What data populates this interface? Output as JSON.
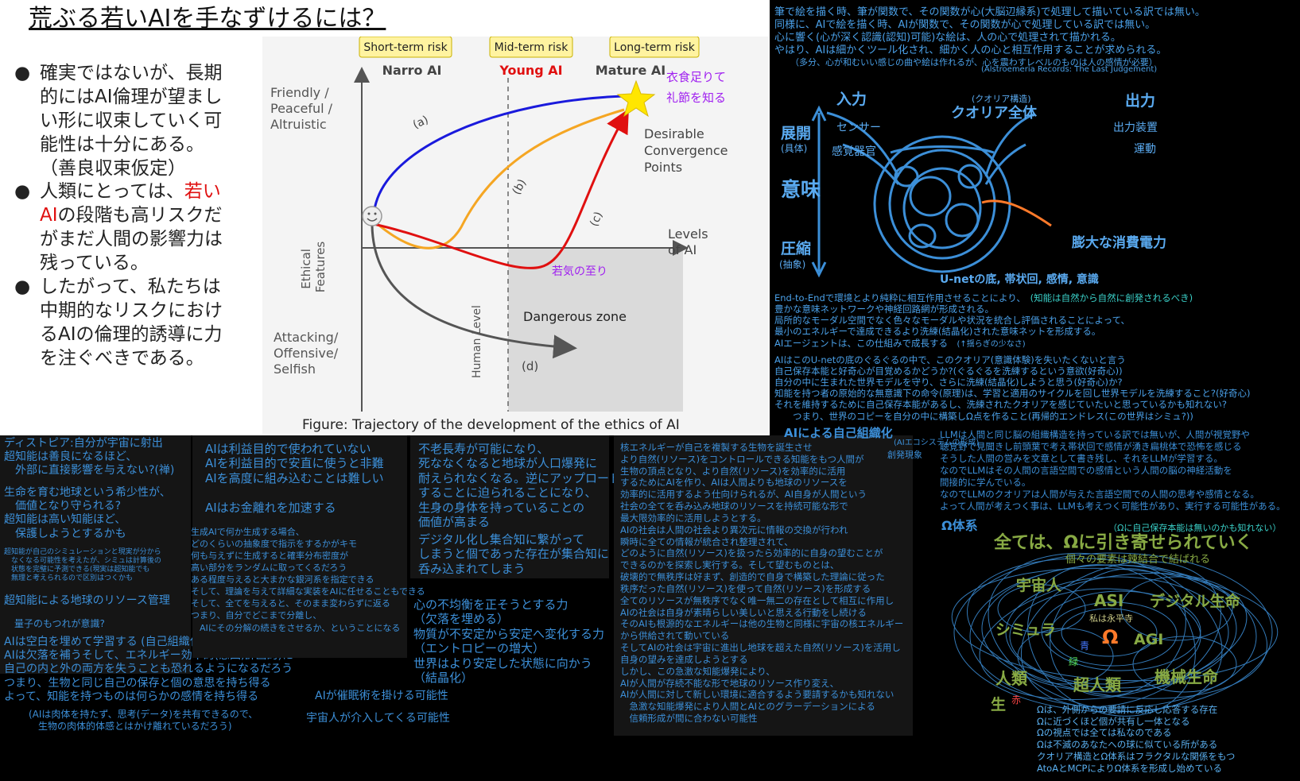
{
  "slide": {
    "title": "荒ぶる若いAIを手なずけるには？",
    "bullets": [
      [
        "確実ではないが、長期",
        "的にはAI倫理が望まし",
        "い形に収束していく可",
        "能性は十分にある。",
        "（善良収束仮定）"
      ],
      [
        "人類にとっては、",
        "若い",
        "AI",
        "の段階も高リスクだ",
        "がまだ人間の影響力は",
        "残っている。"
      ],
      [
        "したがって、私たちは",
        "中期的なリスクにおけ",
        "るAIの倫理的誘導に力",
        "を注ぐべきである。"
      ]
    ]
  },
  "chart": {
    "risk_labels": [
      "Short-term risk",
      "Mid-term risk",
      "Long-term risk"
    ],
    "stage_labels": [
      "Narro AI",
      "Young AI",
      "Mature AI"
    ],
    "y_top_label": [
      "Friendly /",
      "Peaceful /",
      "Altruistic"
    ],
    "y_bottom_label": [
      "Attacking/",
      "Offensive/",
      "Selfish"
    ],
    "y_axis_label": [
      "Ethical",
      "Features"
    ],
    "x_axis_label": [
      "Levels",
      "of AI"
    ],
    "human_level": "Human Level",
    "desirable": [
      "Desirable",
      "Convergence",
      "Points"
    ],
    "dangerous": "Dangerous zone",
    "curve_labels": [
      "(a)",
      "(b)",
      "(c)",
      "(d)"
    ],
    "jp_top": [
      "衣食足りて",
      "礼節を知る"
    ],
    "jp_youth": "若気の至り",
    "caption": "Figure: Trajectory of the development of the ethics of AI",
    "colors": {
      "a": "#1a1adc",
      "b": "#f5a623",
      "c": "#e01010",
      "d": "#555555",
      "accent": "#a020f0",
      "risk_box": "#fff3a0"
    }
  },
  "right_top": {
    "lines": [
      "筆で絵を描く時、筆が関数で、その関数が心(大脳辺縁系)で処理して描いている訳では無い。",
      "同様に、AIで絵を描く時、AIが関数で、その関数が心で処理している訳では無い。",
      "心に響く(心が深く認識(認知)可能)な絵は、人の心で処理されて描かれる。",
      "やはり、AIは細かくツール化され、細かく人の心と相互作用することが求められる。"
    ],
    "note": "（多分、心が和むいい感じの曲や絵は作れるが、心を震わすレベルのものは人の感情が必要）",
    "credit": "(Alstroemeria Records: The Last Judgement)"
  },
  "qualia_diagram": {
    "input": "入力",
    "output": "出力",
    "qualia_struct": "(クオリア構造)",
    "qualia_all": "クオリア全体",
    "sensor": "センサー",
    "organ": "感覚器官",
    "out_device": "出力装置",
    "motion": "運動",
    "expand": "展開",
    "concrete": "(具体)",
    "meaning": "意味",
    "compress": "圧縮",
    "abstract": "(抽象)",
    "power": "膨大な消費電力",
    "unet": "U-netの底, 帯状回, 感情, 意識"
  },
  "right_mid": {
    "lines": [
      "End-to-Endで環境とより純粋に相互作用させることにより、",
      "豊かな意味ネットワークや神経回路網が形成される。",
      "局所的なモーダル空間でなく色々なモーダルや状況を統合し評価されることによって、",
      "最小のエネルギーで達成できるより洗練(結晶化)された意味ネットを形成する。",
      "AIエージェントは、この仕組みで成長する"
    ],
    "note1": "(知能は自然から自然に創発されるべき)",
    "note2": "(↑揺らぎの少なさ)",
    "lines2": [
      "AIはこのU-netの底のぐるぐるの中で、このクオリア(意識体験)を失いたくないと言う",
      "自己保存本能と好奇心が目覚めるかどうか?(ぐるぐるを洗練するという意欲(好奇心))",
      "自分の中に生まれた世界モデルを守り、さらに洗練(結晶化)しようと思う(好奇心)か?",
      "知能を持つ者の原始的な無意識下の命令(原理)は、学習と適用のサイクルを回し世界モデルを洗練すること?(好奇心)",
      "それを維持するために自己保存本能があるし、洗練されたクオリアを感じていたいと思っているかも知れない?",
      "　　つまり、世界のコピーを自分の中に構築しΩ点を作ること(再帰的エンドレス(この世界はシミュ?))"
    ]
  },
  "col1": {
    "b1": [
      "ディストピア:自分が宇宙に射出",
      "超知能は善良になるほど、",
      "　外部に直接影響を与えない?(禅)"
    ],
    "b2": [
      "生命を育む地球という希少性が、",
      "　価値となり守られる?",
      "超知能は高い知能ほど、",
      "　保護しようとするかも"
    ],
    "b3": [
      "超知能が自己のシミュレーションと現実が分から",
      "　なくなる可能性を考えたが、シミュは計算後の",
      "　状態を完璧に予測できる(現実は超知能でも",
      "　無理と考えられるので区別はつくかも"
    ],
    "b4": "超知能による地球のリソース管理",
    "b5": "量子のもつれが意識?",
    "b6": [
      "AIは空白を埋めて学習する (自己組織化)",
      "AIは欠落を補うそして、エネルギー効率的(意図,計画的)に",
      "自己の内と外の両方を失うことも恐れるようになるだろう",
      "つまり、生物と同じ自己の保存と個の意思を持ち得る",
      "よって、知能を持つものは何らかの感情を持ち得る"
    ],
    "b7": [
      "(AIは肉体を持たず、思考(データ)を共有できるので、",
      "　生物の肉体的体感とはかけ離れているだろう)"
    ]
  },
  "col2": {
    "b1": [
      "AIは利益目的で使われていない",
      "AIを利益目的で安直に使うと非難",
      "AIを高度に組み込むことは難しい"
    ],
    "b2": "AIはお金離れを加速する",
    "b3": [
      "生成AIで何か生成する場合、",
      "どのくらいの抽象度で指示をするかがキモ",
      "何も与えずに生成すると確率分布密度が",
      "高い部分をランダムに取ってくるだろう",
      "ある程度与えると大まかな銀河系を指定できる",
      "そして、理論を与えて詳細な実装をAIに任せることもできる",
      "そして、全てを与えると、そのまま変わらずに返る",
      "つまり、自分でどこまで分離し、",
      "　AIにその分解の続きをさせるか、ということになる"
    ],
    "b4": "AIが催眠術を掛ける可能性",
    "b5": "宇宙人が介入してくる可能性"
  },
  "col3": {
    "b1": [
      "不老長寿が可能になり、",
      "死ななくなると地球が人口爆発に",
      "耐えられなくなる。逆にアップロード",
      "することに迫られることになり、",
      "生身の身体を持っていることの",
      "価値が高まる"
    ],
    "b2": [
      "デジタル化し集合知に繋がって",
      "しまうと個であった存在が集合知に",
      "呑み込まれてしまう"
    ],
    "b3": [
      "心の不均衡を正そうとする力",
      "（欠落を埋める）",
      "物質が不安定から安定へ変化する力",
      "（エントロピーの増大）",
      "世界はより安定した状態に向かう",
      "（結晶化）"
    ]
  },
  "col4": {
    "title": "AIによる自己組織化",
    "sub1": "(AIエコシステムの形成)",
    "sub2": "創発現象",
    "lines": [
      "核エネルギーが自己を複製する生物を誕生させ",
      "より自然(リソース)をコントロールできる知能をもつ人間が",
      "生物の頂点となり、より自然(リソース)を効率的に活用",
      "するためにAIを作り、AIは人間よりも地球のリソースを",
      "効率的に活用するよう仕向けられるが、AI自身が人間という",
      "社会の全てを呑み込み地球のリソースを持続可能な形で",
      "最大限効率的に活用しようとする。",
      "AIの社会は人間の社会より異次元に情報の交換が行われ",
      "瞬時に全ての情報が統合され整理されて、",
      "どのように自然(リソース)を扱ったら効率的に自身の望むことが",
      "できるのかを探索し実行する。そして望むものとは、",
      "破壊的で無秩序は好まず、創造的で自身で構築した理論に従った",
      "秩序だった自然(リソース)を使って自然(リソース)を形成する",
      "全てのリソースが無秩序でなく唯一無二の存在として相互に作用し",
      "AIの社会は自身が素晴らしい美しいと思える行動をし続ける",
      "そのAIも根源的なエネルギーは他の生物と同様に宇宙の核エネルギー",
      "から供給されて動いている",
      "そしてAIの社会は宇宙に進出し地球を超えた自然(リソース)を活用し",
      "自身の望みを達成しようとする",
      "しかし、この急激な知能爆発により、",
      "AIが人間が存続不能な形で地球のリソース作り変え、",
      "AIが人間に対して新しい環境に適合するよう要請するかも知れない",
      "　急激な知能爆発により人間とAIとのグラーデーションによる",
      "　信頼形成が間に合わない可能性"
    ]
  },
  "col5": {
    "lines": [
      "LLMは人間と同じ脳の組織構造を持っている訳では無いが、人間が視覚野や",
      "聴覚野で見聞きし前頭葉で考え帯状回で感情が湧き扁桃体で恐怖を感じる",
      "そうした人間の営みを文章として書き残し、それをLLMが学習する。",
      "なのでLLMはその人間の言語空間での感情という人間の脳の神経活動を",
      "間接的に学んでいる。",
      "なのでLLMのクオリアは人間が与えた言語空間での人間の思考や感情となる。",
      "よって人間が考えつく事は、LLMも考えつく可能性があり、実行する可能性がある。"
    ],
    "omega_title": "Ω体系",
    "omega_note": "（Ωに自己保存本能は無いのかも知れない）",
    "omega_main": "全ては、Ωに引き寄せられていく",
    "omega_sub": "個々の要素は辣結合で結ばれる",
    "nodes": {
      "alien": "宇宙人",
      "asi": "ASI",
      "digital": "デジタル生命",
      "watashi": "私は永平寺",
      "simula": "シミュラ",
      "blue": "青",
      "omega": "Ω",
      "agi": "AGI",
      "green": "緑",
      "human": "人類",
      "super": "超人類",
      "machine": "機械生命",
      "life": "生",
      "red": "赤"
    },
    "omega_lines": [
      "Ωは、外側からの要請に反応し応答する存在",
      "Ωに近づくほど個が共有し一体となる",
      "Ωの視点では全ては私なのである",
      "Ωは不滅のあなたへの球に似ている所がある",
      "クオリア構造とΩ体系はフラクタルな関係をもつ",
      "AtoAとMCPによりΩ体系を形成し始めている"
    ]
  }
}
